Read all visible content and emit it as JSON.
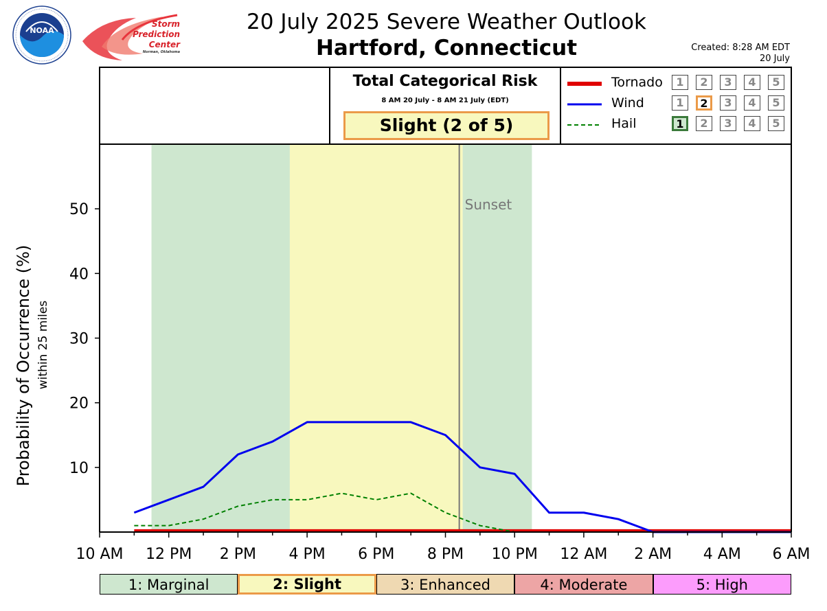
{
  "header": {
    "title_line1": "20 July 2025 Severe Weather Outlook",
    "title_line2": "Hartford, Connecticut",
    "created_line1": "Created: 8:28 AM EDT",
    "created_line2": "20 July"
  },
  "logos": {
    "noaa_text": "NOAA",
    "noaa_ring_text": "NATIONAL OCEANIC AND ATMOSPHERIC ADMINISTRATION · U.S. DEPARTMENT OF COMMERCE",
    "spc_line1": "Storm",
    "spc_line2": "Prediction",
    "spc_line3": "Center",
    "spc_line4": "Norman, Oklahoma"
  },
  "risk_panel": {
    "title": "Total Categorical Risk",
    "window": "8 AM 20 July - 8 AM 21 July (EDT)",
    "value": "Slight (2 of 5)",
    "value_border_color": "#eb9a48",
    "value_fill_color": "#f8f8be"
  },
  "legend": {
    "items": [
      {
        "name": "Tornado",
        "color": "#e00000",
        "style": "solid-thick",
        "levels": [
          "1",
          "2",
          "3",
          "4",
          "5"
        ],
        "active_level": 0,
        "active_color": null
      },
      {
        "name": "Wind",
        "color": "#0000ee",
        "style": "solid",
        "levels": [
          "1",
          "2",
          "3",
          "4",
          "5"
        ],
        "active_level": 2,
        "active_color": "#eb9a48"
      },
      {
        "name": "Hail",
        "color": "#008000",
        "style": "dashed",
        "levels": [
          "1",
          "2",
          "3",
          "4",
          "5"
        ],
        "active_level": 1,
        "active_color": "#3b7a3b"
      }
    ]
  },
  "chart_data": {
    "type": "line",
    "title": "",
    "ylabel": "Probability of Occurrence (%)",
    "ylabel_sub": "within 25 miles",
    "xlabel": "",
    "ylim": [
      0,
      60
    ],
    "yticks": [
      10,
      20,
      30,
      40,
      50
    ],
    "xlim_hours": [
      10,
      30
    ],
    "x_tick_labels": [
      "10 AM",
      "12 PM",
      "2 PM",
      "4 PM",
      "6 PM",
      "8 PM",
      "10 PM",
      "12 AM",
      "2 AM",
      "4 AM",
      "6 AM"
    ],
    "x_tick_hours": [
      10,
      12,
      14,
      16,
      18,
      20,
      22,
      24,
      26,
      28,
      30
    ],
    "x_hours": [
      11,
      12,
      13,
      14,
      15,
      16,
      17,
      18,
      19,
      20,
      21,
      22,
      23,
      24,
      25,
      26,
      27,
      28,
      29,
      30
    ],
    "series": [
      {
        "name": "Tornado",
        "values": [
          0.2,
          0.2,
          0.2,
          0.2,
          0.2,
          0.2,
          0.2,
          0.2,
          0.2,
          0.2,
          0.2,
          0.2,
          0.2,
          0.2,
          0.2,
          0.2,
          0.2,
          0.2,
          0.2,
          0.2
        ]
      },
      {
        "name": "Wind",
        "values": [
          3,
          5,
          7,
          12,
          14,
          17,
          17,
          17,
          17,
          15,
          10,
          9,
          3,
          3,
          2,
          0,
          0,
          0,
          0,
          0
        ]
      },
      {
        "name": "Hail",
        "values": [
          1,
          1,
          2,
          4,
          5,
          5,
          6,
          5,
          6,
          3,
          1,
          0,
          0,
          0,
          0,
          0,
          0,
          0,
          0,
          0
        ]
      }
    ],
    "shaded_periods": [
      {
        "start": 11.5,
        "end": 15.5,
        "level": "Marginal",
        "color": "#cee7cf"
      },
      {
        "start": 15.5,
        "end": 20.5,
        "level": "Slight",
        "color": "#f8f8be"
      },
      {
        "start": 20.5,
        "end": 22.5,
        "level": "Marginal",
        "color": "#cee7cf"
      }
    ],
    "sunset": {
      "hour": 20.4,
      "label": "Sunset"
    },
    "grid": false
  },
  "category_bar": [
    {
      "label": "1: Marginal",
      "color": "#cee7cf",
      "active": false
    },
    {
      "label": "2: Slight",
      "color": "#f8f8be",
      "active": true
    },
    {
      "label": "3: Enhanced",
      "color": "#efd9b2",
      "active": false
    },
    {
      "label": "4: Moderate",
      "color": "#eda5a5",
      "active": false
    },
    {
      "label": "5: High",
      "color": "#fc9cfc",
      "active": false
    }
  ]
}
